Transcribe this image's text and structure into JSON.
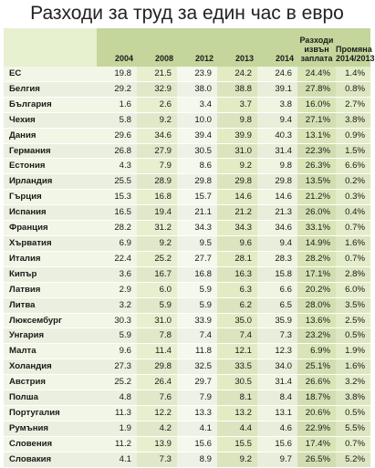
{
  "title": "Разходи за труд за един час в евро",
  "columns": [
    "",
    "2004",
    "2008",
    "2012",
    "2013",
    "2014",
    "Разходи извън заплата",
    "Промяна 2014/2013"
  ],
  "rows": [
    [
      "ЕС",
      "19.8",
      "21.5",
      "23.9",
      "24.2",
      "24.6",
      "24.4%",
      "1.4%"
    ],
    [
      "Белгия",
      "29.2",
      "32.9",
      "38.0",
      "38.8",
      "39.1",
      "27.8%",
      "0.8%"
    ],
    [
      "България",
      "1.6",
      "2.6",
      "3.4",
      "3.7",
      "3.8",
      "16.0%",
      "2.7%"
    ],
    [
      "Чехия",
      "5.8",
      "9.2",
      "10.0",
      "9.8",
      "9.4",
      "27.1%",
      "3.8%"
    ],
    [
      "Дания",
      "29.6",
      "34.6",
      "39.4",
      "39.9",
      "40.3",
      "13.1%",
      "0.9%"
    ],
    [
      "Германия",
      "26.8",
      "27.9",
      "30.5",
      "31.0",
      "31.4",
      "22.3%",
      "1.5%"
    ],
    [
      "Естония",
      "4.3",
      "7.9",
      "8.6",
      "9.2",
      "9.8",
      "26.3%",
      "6.6%"
    ],
    [
      "Ирландия",
      "25.5",
      "28.9",
      "29.8",
      "29.8",
      "29.8",
      "13.5%",
      "0.2%"
    ],
    [
      "Гърция",
      "15.3",
      "16.8",
      "15.7",
      "14.6",
      "14.6",
      "21.2%",
      "0.3%"
    ],
    [
      "Испания",
      "16.5",
      "19.4",
      "21.1",
      "21.2",
      "21.3",
      "26.0%",
      "0.4%"
    ],
    [
      "Франция",
      "28.2",
      "31.2",
      "34.3",
      "34.3",
      "34.6",
      "33.1%",
      "0.7%"
    ],
    [
      "Хърватия",
      "6.9",
      "9.2",
      "9.5",
      "9.6",
      "9.4",
      "14.9%",
      "1.6%"
    ],
    [
      "Италия",
      "22.4",
      "25.2",
      "27.7",
      "28.1",
      "28.3",
      "28.2%",
      "0.7%"
    ],
    [
      "Кипър",
      "3.6",
      "16.7",
      "16.8",
      "16.3",
      "15.8",
      "17.1%",
      "2.8%"
    ],
    [
      "Латвия",
      "2.9",
      "6.0",
      "5.9",
      "6.3",
      "6.6",
      "20.2%",
      "6.0%"
    ],
    [
      "Литва",
      "3.2",
      "5.9",
      "5.9",
      "6.2",
      "6.5",
      "28.0%",
      "3.5%"
    ],
    [
      "Люксембург",
      "30.3",
      "31.0",
      "33.9",
      "35.0",
      "35.9",
      "13.6%",
      "2.5%"
    ],
    [
      "Унгария",
      "5.9",
      "7.8",
      "7.4",
      "7.4",
      "7.3",
      "23.2%",
      "0.5%"
    ],
    [
      "Малта",
      "9.6",
      "11.4",
      "11.8",
      "12.1",
      "12.3",
      "6.9%",
      "1.9%"
    ],
    [
      "Холандия",
      "27.3",
      "29.8",
      "32.5",
      "33.5",
      "34.0",
      "25.1%",
      "1.6%"
    ],
    [
      "Австрия",
      "25.2",
      "26.4",
      "29.7",
      "30.5",
      "31.4",
      "26.6%",
      "3.2%"
    ],
    [
      "Полша",
      "4.8",
      "7.6",
      "7.9",
      "8.1",
      "8.4",
      "18.7%",
      "3.8%"
    ],
    [
      "Португалия",
      "11.3",
      "12.2",
      "13.3",
      "13.2",
      "13.1",
      "20.6%",
      "0.5%"
    ],
    [
      "Румъния",
      "1.9",
      "4.2",
      "4.1",
      "4.4",
      "4.6",
      "22.9%",
      "5.5%"
    ],
    [
      "Словения",
      "11.2",
      "13.9",
      "15.6",
      "15.5",
      "15.6",
      "17.4%",
      "0.7%"
    ],
    [
      "Словакия",
      "4.1",
      "7.3",
      "8.9",
      "9.2",
      "9.7",
      "26.5%",
      "5.2%"
    ]
  ]
}
